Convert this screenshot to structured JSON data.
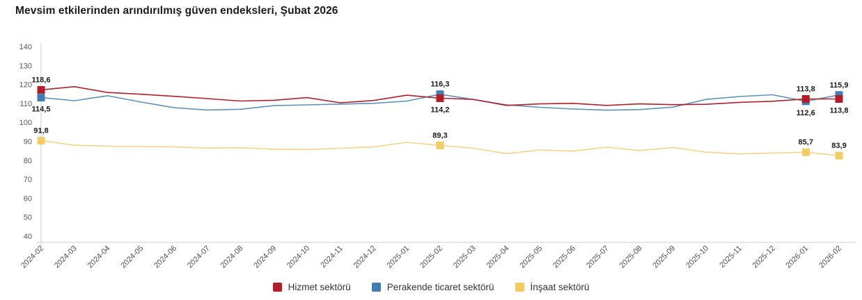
{
  "chart_data": {
    "type": "line",
    "title": "Mevsim etkilerinden arındırılmış güven endeksleri, Şubat 2026",
    "xlabel": "",
    "ylabel": "",
    "ylim": [
      40,
      140
    ],
    "y_ticks": [
      40,
      50,
      60,
      70,
      80,
      90,
      100,
      110,
      120,
      130,
      140
    ],
    "grid": "off",
    "legend_position": "bottom",
    "decimal_separator": ",",
    "x": [
      "2024-02",
      "2024-03",
      "2024-04",
      "2024-05",
      "2024-06",
      "2024-07",
      "2024-08",
      "2024-09",
      "2024-10",
      "2024-11",
      "2024-12",
      "2025-01",
      "2025-02",
      "2025-03",
      "2025-04",
      "2025-05",
      "2025-06",
      "2025-07",
      "2025-08",
      "2025-09",
      "2025-10",
      "2025-11",
      "2025-12",
      "2026-01",
      "2026-02"
    ],
    "series": [
      {
        "id": "hizmet",
        "name": "Hizmet sektörü",
        "color": "#b01e28",
        "line_color": "#ae2029",
        "values": [
          118.6,
          120.3,
          117.2,
          116.3,
          115.2,
          114.0,
          112.7,
          113.1,
          114.5,
          111.8,
          113.0,
          115.8,
          114.2,
          113.6,
          110.4,
          111.2,
          111.5,
          110.4,
          111.2,
          110.8,
          111.0,
          112.0,
          112.6,
          113.8,
          113.8
        ],
        "point_labels": [
          {
            "i": 0,
            "text": "118,6",
            "pos": "above"
          },
          {
            "i": 12,
            "text": "114,2",
            "pos": "below"
          },
          {
            "i": 23,
            "text": "113,8",
            "pos": "above"
          },
          {
            "i": 24,
            "text": "113,8",
            "pos": "below"
          }
        ]
      },
      {
        "id": "perakende",
        "name": "Perakende ticaret sektörü",
        "color": "#3f7db2",
        "line_color": "#5b91bc",
        "values": [
          114.5,
          112.9,
          115.5,
          112.2,
          109.2,
          108.0,
          108.4,
          110.3,
          110.7,
          111.1,
          111.5,
          112.7,
          116.3,
          113.5,
          110.7,
          109.4,
          108.5,
          107.9,
          108.2,
          109.5,
          113.6,
          115.1,
          116.0,
          112.6,
          115.9
        ],
        "point_labels": [
          {
            "i": 0,
            "text": "114,5",
            "pos": "below"
          },
          {
            "i": 12,
            "text": "116,3",
            "pos": "above"
          },
          {
            "i": 23,
            "text": "112,6",
            "pos": "below"
          },
          {
            "i": 24,
            "text": "115,9",
            "pos": "above"
          }
        ]
      },
      {
        "id": "insaat",
        "name": "İnşaat sektörü",
        "color": "#f3cc67",
        "line_color": "#f6d486",
        "values": [
          91.8,
          89.4,
          88.9,
          88.7,
          88.5,
          87.9,
          88.1,
          87.3,
          87.1,
          87.8,
          88.5,
          90.9,
          89.3,
          87.8,
          85.0,
          86.9,
          86.3,
          88.4,
          86.6,
          88.2,
          85.8,
          84.8,
          85.3,
          85.7,
          83.9
        ],
        "point_labels": [
          {
            "i": 0,
            "text": "91,8",
            "pos": "above"
          },
          {
            "i": 12,
            "text": "89,3",
            "pos": "above"
          },
          {
            "i": 23,
            "text": "85,7",
            "pos": "above"
          },
          {
            "i": 24,
            "text": "83,9",
            "pos": "above"
          }
        ]
      }
    ],
    "axis_color": "#cccccc",
    "tick_label_color": "#555555",
    "data_label_color": "#1a1a1a"
  }
}
